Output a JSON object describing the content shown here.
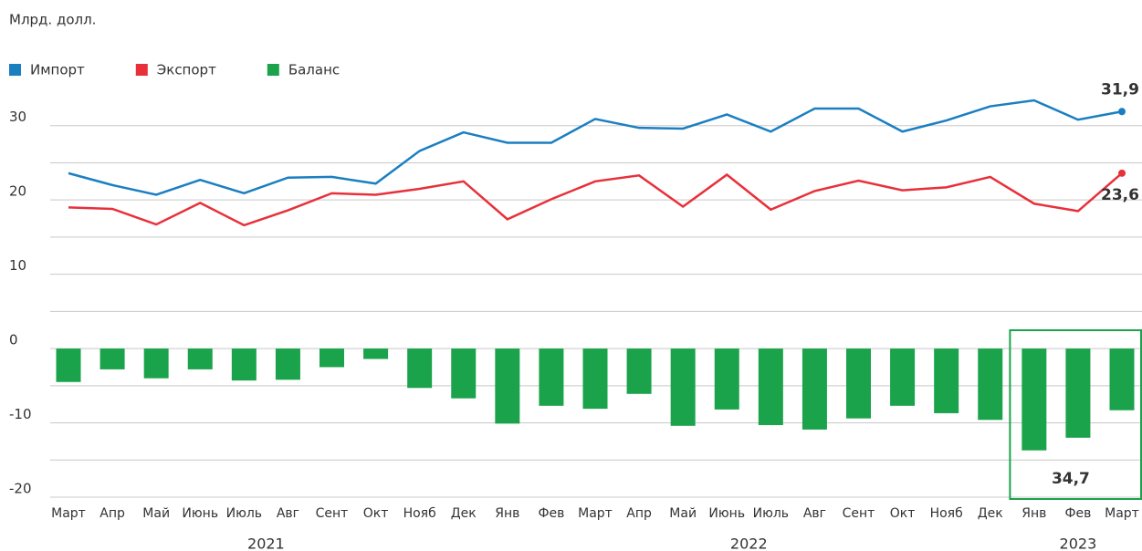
{
  "chart_data": {
    "type": "bar-line",
    "unit_label": "Млрд. долл.",
    "categories": [
      "Март",
      "Апр",
      "Май",
      "Июнь",
      "Июль",
      "Авг",
      "Сент",
      "Окт",
      "Нояб",
      "Дек",
      "Янв",
      "Фев",
      "Март",
      "Апр",
      "Май",
      "Июнь",
      "Июль",
      "Авг",
      "Сент",
      "Окт",
      "Нояб",
      "Дек",
      "Янв",
      "Фев",
      "Март"
    ],
    "years": [
      {
        "label": "2021",
        "start": 0,
        "end": 9
      },
      {
        "label": "2022",
        "start": 10,
        "end": 21
      },
      {
        "label": "2023",
        "start": 22,
        "end": 24
      }
    ],
    "series": [
      {
        "name": "Импорт",
        "color": "#1a7fc1",
        "kind": "line",
        "values": [
          23.6,
          22,
          20.7,
          22.7,
          20.9,
          23,
          23.1,
          22.2,
          26.6,
          29.1,
          27.7,
          27.7,
          30.9,
          29.7,
          29.6,
          31.5,
          29.2,
          32.3,
          32.3,
          29.2,
          30.7,
          32.6,
          33.4,
          30.8,
          31.9
        ],
        "value_labels": [
          null,
          null,
          null,
          null,
          null,
          null,
          null,
          null,
          null,
          null,
          null,
          null,
          null,
          null,
          null,
          null,
          null,
          null,
          null,
          null,
          null,
          null,
          null,
          null,
          "31,9"
        ]
      },
      {
        "name": "Экспорт",
        "color": "#e8303a",
        "kind": "line",
        "values": [
          19,
          18.8,
          16.7,
          19.6,
          16.6,
          18.6,
          20.9,
          20.7,
          21.5,
          22.5,
          17.4,
          20.1,
          22.5,
          23.3,
          19.1,
          23.4,
          18.7,
          21.2,
          22.6,
          21.3,
          21.7,
          23.1,
          19.5,
          18.5,
          23.6
        ],
        "value_labels": [
          null,
          null,
          null,
          null,
          null,
          null,
          null,
          null,
          null,
          null,
          null,
          null,
          null,
          null,
          null,
          null,
          null,
          null,
          null,
          null,
          null,
          null,
          null,
          null,
          "23,6"
        ]
      },
      {
        "name": "Баланс",
        "color": "#1aa34a",
        "kind": "bar",
        "values": [
          -4.5,
          -2.8,
          -4,
          -2.8,
          -4.3,
          -4.2,
          -2.5,
          -1.4,
          -5.3,
          -6.7,
          -10.1,
          -7.7,
          -8.1,
          -6.1,
          -10.4,
          -8.2,
          -10.3,
          -10.9,
          -9.4,
          -7.7,
          -8.7,
          -9.6,
          -13.7,
          -12,
          -8.3
        ]
      }
    ],
    "annotations": [
      {
        "text": "34,7",
        "start": 22,
        "end": 24
      }
    ],
    "ylim": [
      -20,
      35
    ],
    "yticks": [
      30,
      20,
      10,
      0,
      -10,
      -20
    ],
    "minor_yticks": [
      25,
      15,
      5,
      -5,
      -15
    ],
    "grid": true
  }
}
